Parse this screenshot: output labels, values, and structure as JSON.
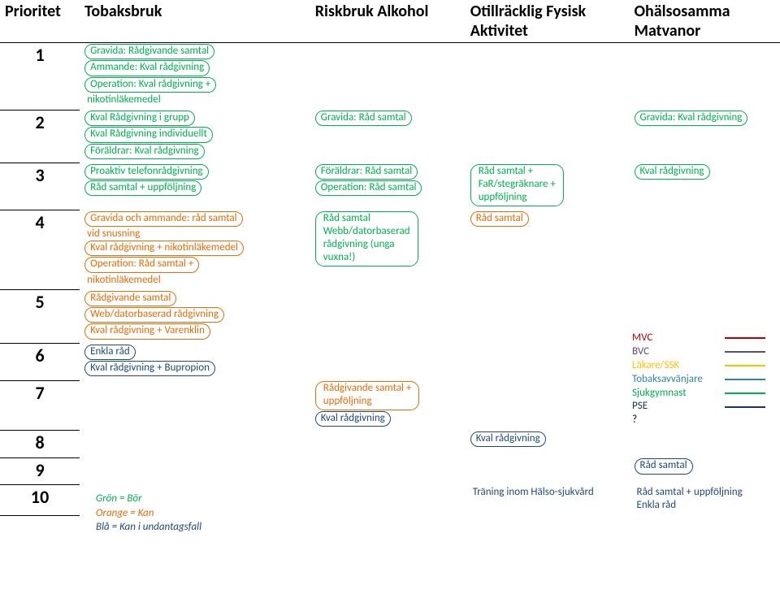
{
  "colors": {
    "green": "#00b050",
    "orange": "#e46c0a",
    "blue": "#1f497d",
    "red": "#c00000",
    "purple": "#604a7b",
    "yellow": "#ffc000",
    "teal": "#31859c",
    "navy": "#17365d"
  },
  "header": {
    "priority": "Prioritet",
    "tobak": "Tobaksbruk",
    "alkohol": "Riskbruk Alkohol",
    "fysisk": "Otillräcklig Fysisk Aktivitet",
    "mat": "Ohälsosamma Matvanor"
  },
  "rows": {
    "r1": {
      "n": "1",
      "tobak": [
        {
          "t": "Gravida: Rådgivande samtal",
          "g": true,
          "c": "green"
        },
        {
          "t": "Ammande: Kval rådgivning",
          "g": true,
          "c": "green"
        },
        {
          "t": "Operation: Kval rådgivning +",
          "g": true,
          "c": "green"
        },
        {
          "t": "nikotinläkemedel",
          "g": false,
          "c": "green"
        }
      ]
    },
    "r2": {
      "n": "2",
      "tobak": [
        {
          "t": "Kval Rådgivning i grupp",
          "g": true,
          "c": "green"
        },
        {
          "t": "Kval Rådgivning individuellt",
          "g": true,
          "c": "green"
        },
        {
          "t": "Föräldrar: Kval rådgivning",
          "g": true,
          "c": "green"
        }
      ],
      "alkohol": [
        {
          "t": "Gravida: Råd samtal",
          "g": true,
          "c": "green"
        }
      ],
      "mat": [
        {
          "t": "Gravida: Kval rådgivning",
          "g": true,
          "c": "green"
        }
      ]
    },
    "r3": {
      "n": "3",
      "tobak": [
        {
          "t": "Proaktiv telefonrådgivning",
          "g": true,
          "c": "green"
        },
        {
          "t": "Råd samtal + uppföljning",
          "g": true,
          "c": "green"
        }
      ],
      "alkohol": [
        {
          "t": "Föräldrar: Råd samtal",
          "g": true,
          "c": "green"
        },
        {
          "t": "Operation: Råd samtal",
          "g": true,
          "c": "green"
        }
      ],
      "fysisk": [
        {
          "t": "Råd samtal +",
          "g": false,
          "c": "green"
        },
        {
          "t": "FaR/stegräknare +",
          "g": false,
          "c": "green"
        },
        {
          "t": "uppföljning",
          "g": false,
          "c": "green"
        }
      ],
      "fysisk_group": true,
      "mat": [
        {
          "t": "Kval rådgivning",
          "g": true,
          "c": "green"
        }
      ]
    },
    "r4": {
      "n": "4",
      "tobak": [
        {
          "t": "Gravida och ammande: råd samtal",
          "g": true,
          "c": "orange"
        },
        {
          "t": "vid snusning",
          "g": false,
          "c": "orange"
        },
        {
          "t": "Kval rådgivning + nikotinläkemedel",
          "g": true,
          "c": "orange"
        },
        {
          "t": "Operation: Råd samtal +",
          "g": true,
          "c": "orange"
        },
        {
          "t": "nikotinläkemedel",
          "g": false,
          "c": "orange"
        }
      ],
      "alkohol": [
        {
          "t": "Råd samtal",
          "g": false,
          "c": "green"
        },
        {
          "t": "Webb/datorbaserad",
          "g": false,
          "c": "green"
        },
        {
          "t": "rådgivning (unga",
          "g": false,
          "c": "green"
        },
        {
          "t": "vuxna!)",
          "g": false,
          "c": "green"
        }
      ],
      "alkohol_group": true,
      "fysisk": [
        {
          "t": "Råd samtal",
          "g": true,
          "c": "orange"
        }
      ]
    },
    "r5": {
      "n": "5",
      "tobak": [
        {
          "t": "Rådgivande samtal",
          "g": true,
          "c": "orange"
        },
        {
          "t": "Web/datorbaserad rådgivning",
          "g": true,
          "c": "orange"
        },
        {
          "t": "Kval rådgivning + Varenklin",
          "g": true,
          "c": "orange"
        }
      ]
    },
    "r6": {
      "n": "6",
      "tobak": [
        {
          "t": "Enkla råd",
          "g": true,
          "c": "blue"
        },
        {
          "t": "Kval rådgivning + Bupropion",
          "g": true,
          "c": "blue"
        }
      ]
    },
    "r7": {
      "n": "7",
      "alkohol": [
        {
          "t": "Rådgivande samtal +",
          "g": false,
          "c": "orange"
        },
        {
          "t": "uppföljning",
          "g": false,
          "c": "orange"
        },
        {
          "t": "Kval rådgivning",
          "g": true,
          "c": "blue"
        }
      ],
      "alkohol_group_first2": true
    },
    "r8": {
      "n": "8",
      "fysisk": [
        {
          "t": "Kval rådgivning",
          "g": true,
          "c": "blue"
        }
      ]
    },
    "r9": {
      "n": "9",
      "mat": [
        {
          "t": "Råd samtal",
          "g": true,
          "c": "blue"
        }
      ]
    },
    "r10": {
      "n": "10",
      "fysisk": [
        {
          "t": "Träning inom Hälso-sjukvård",
          "g": false,
          "c": "blue"
        }
      ],
      "mat": [
        {
          "t": "Råd samtal + uppföljning",
          "g": false,
          "c": "blue"
        },
        {
          "t": "Enkla råd",
          "g": false,
          "c": "blue"
        }
      ]
    }
  },
  "legend": {
    "items": [
      {
        "label": "MVC",
        "color": "red"
      },
      {
        "label": "BVC",
        "color": "purple"
      },
      {
        "label": "Läkare/SSK",
        "color": "yellow"
      },
      {
        "label": "Tobaksavvänjare",
        "color": "teal"
      },
      {
        "label": "Sjukgymnast",
        "color": "green"
      },
      {
        "label": "PSE",
        "color": "navy"
      },
      {
        "label": "?",
        "color": ""
      }
    ]
  },
  "key": {
    "green": "Grön = Bör",
    "orange": "Orange = Kan",
    "blue": "Blå = Kan i undantagsfall"
  }
}
